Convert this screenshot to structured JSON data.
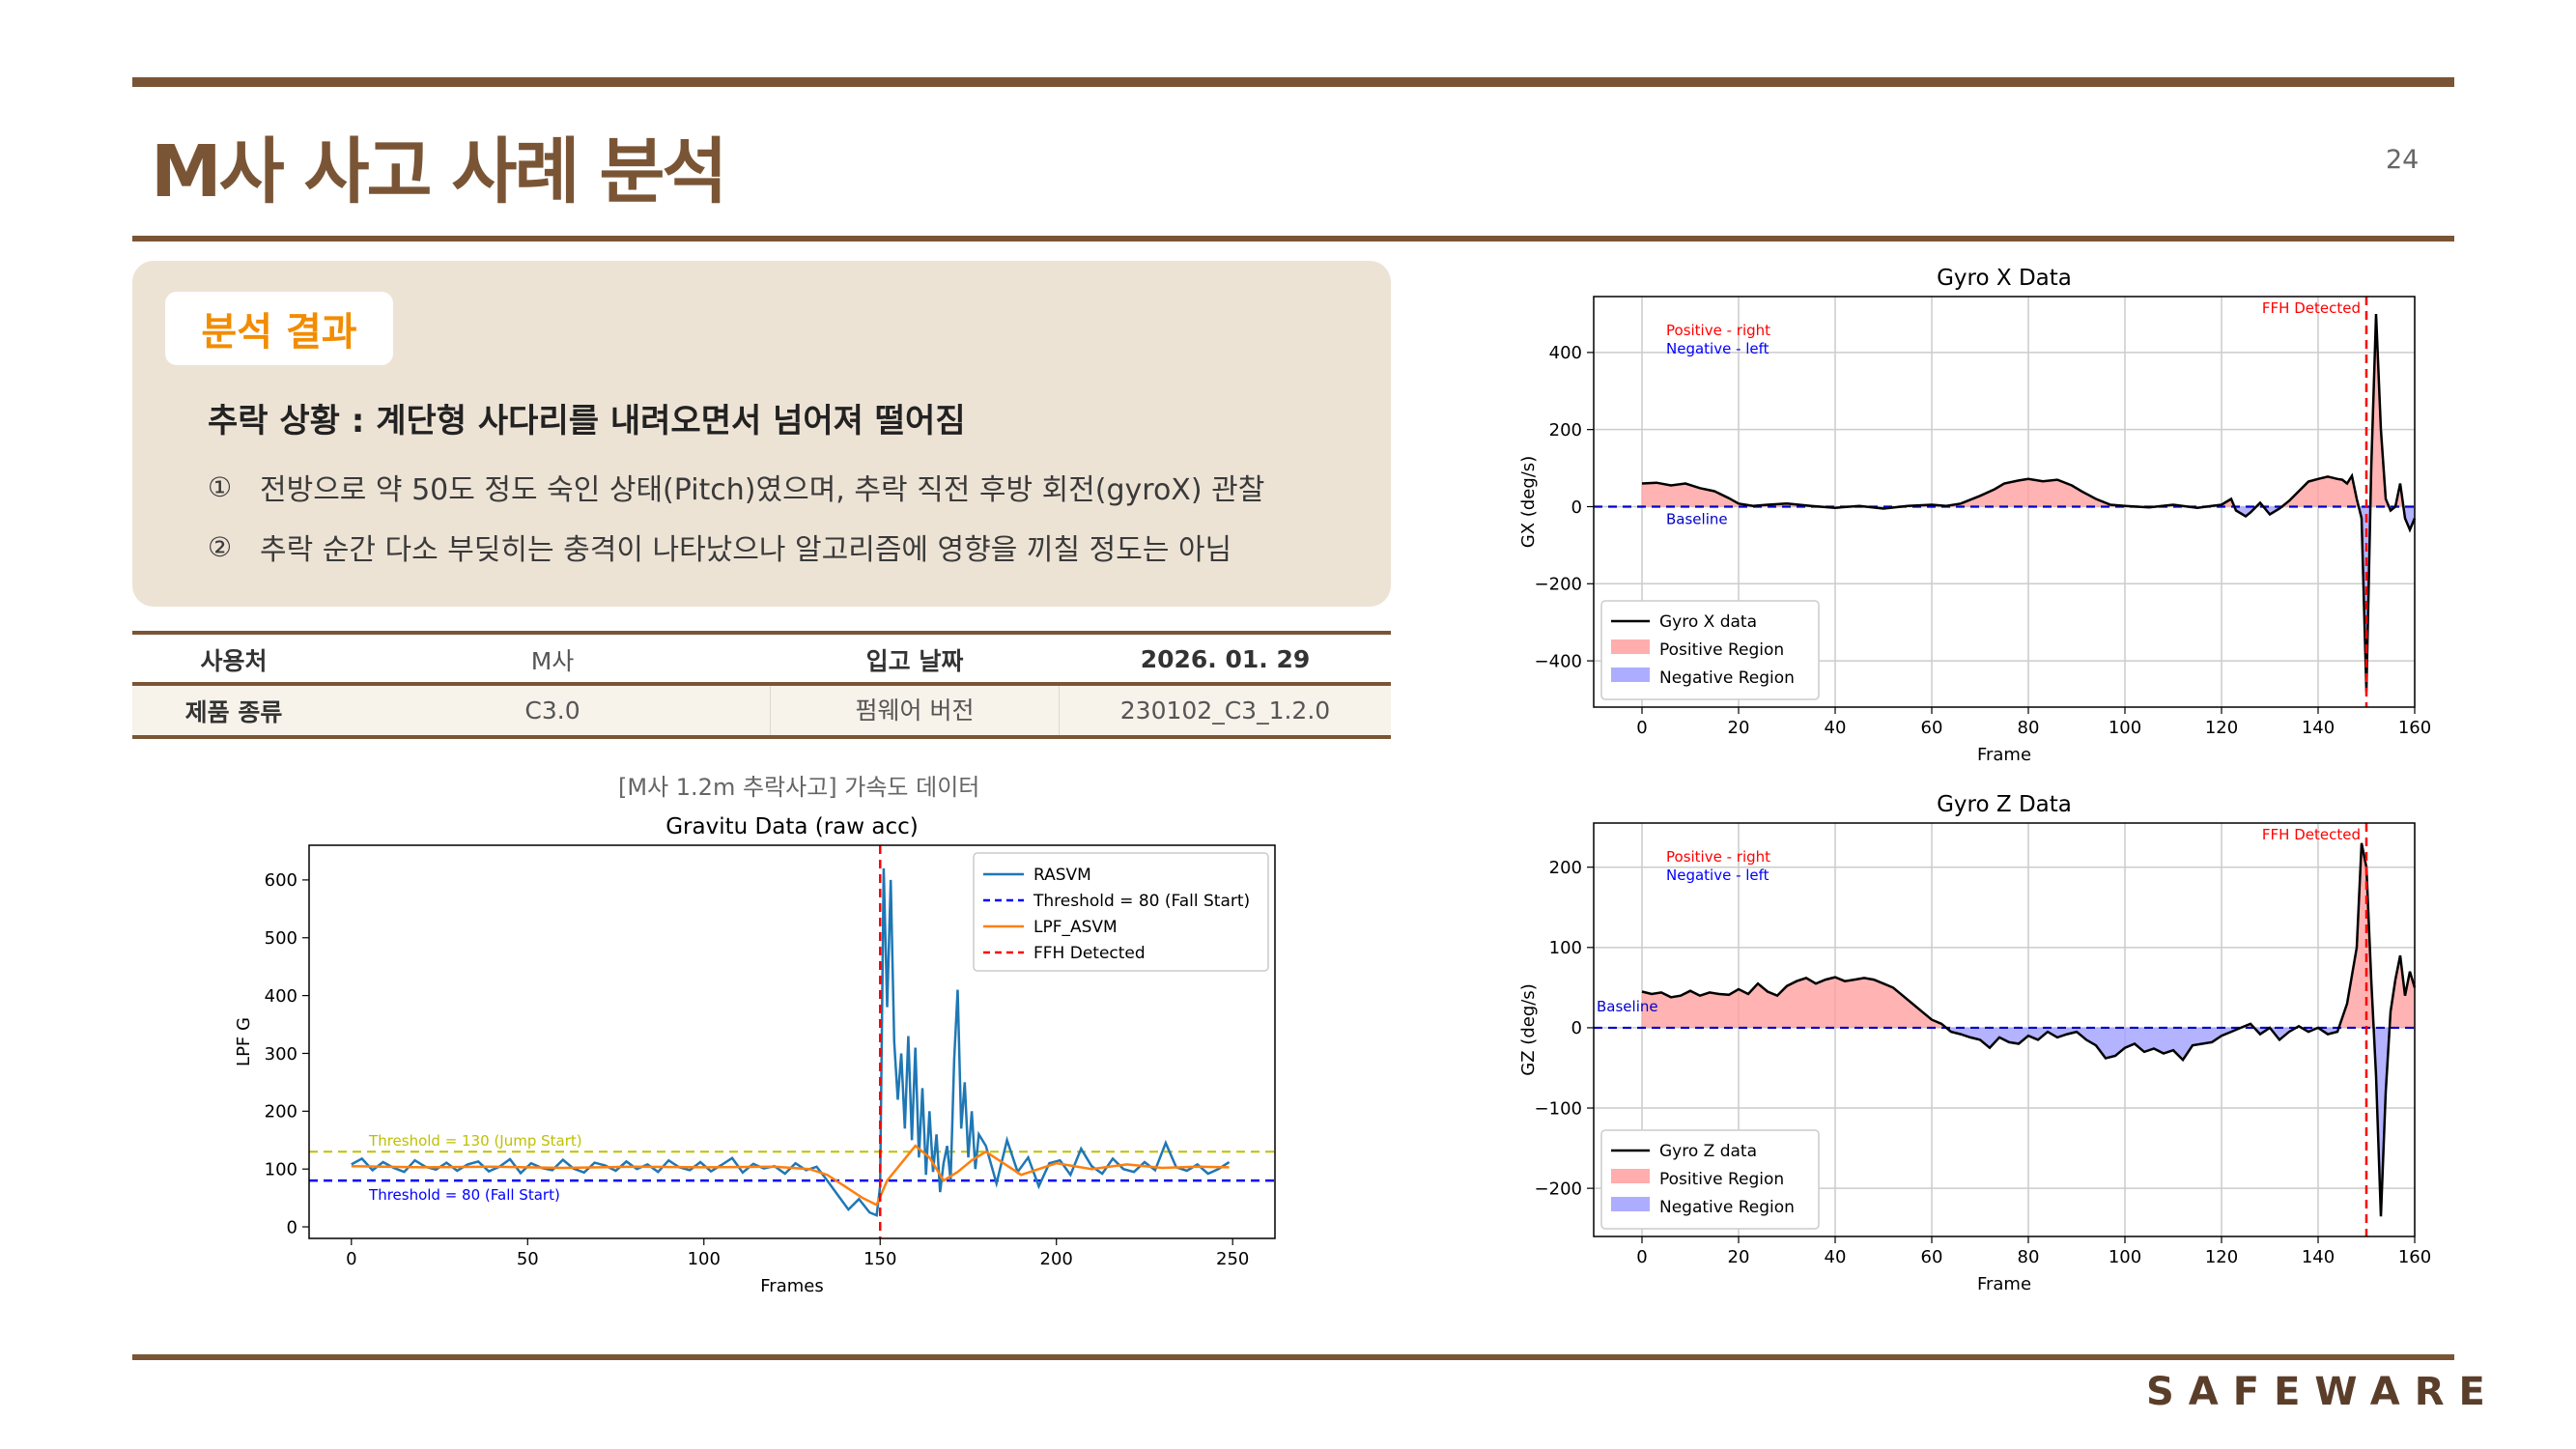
{
  "header": {
    "title": "M사 사고 사례 분석",
    "page_number": "24"
  },
  "result": {
    "tag": "분석 결과",
    "headline": "추락 상황 : 계단형 사다리를 내려오면서 넘어져 떨어짐",
    "items": [
      {
        "num": "①",
        "text": "전방으로 약 50도 정도 숙인 상태(Pitch)였으며, 추락 직전 후방 회전(gyroX) 관찰"
      },
      {
        "num": "②",
        "text": "추락 순간 다소 부딪히는 충격이 나타났으나 알고리즘에 영향을 끼칠 정도는 아님"
      }
    ]
  },
  "info_table": {
    "row1": [
      "사용처",
      "M사",
      "입고 날짜",
      "2026. 01. 29"
    ],
    "row2": [
      "제품 종류",
      "C3.0",
      "펌웨어 버전",
      "230102_C3_1.2.0"
    ]
  },
  "chart_caption": "[M사 1.2m 추락사고] 가속도 데이터",
  "brand": "SAFEWARE",
  "chart_data": [
    {
      "type": "line",
      "title": "Gravitu Data (raw acc)",
      "xlabel": "Frames",
      "ylabel": "LPF G",
      "xlim": [
        -12,
        262
      ],
      "ylim": [
        -20,
        660
      ],
      "xticks": [
        0,
        50,
        100,
        150,
        200,
        250
      ],
      "yticks": [
        0,
        100,
        200,
        300,
        400,
        500,
        600
      ],
      "grid": false,
      "legend_position": "upper right",
      "colors": {
        "rasvm": "#1f77b4",
        "lpf": "#ff7f0e",
        "fall": "#0000ff",
        "jump": "#bfbf00",
        "ffh": "#ff0000"
      },
      "series": [
        {
          "name": "RASVM",
          "x": [
            0,
            3,
            6,
            9,
            12,
            15,
            18,
            21,
            24,
            27,
            30,
            33,
            36,
            39,
            42,
            45,
            48,
            51,
            54,
            57,
            60,
            63,
            66,
            69,
            72,
            75,
            78,
            81,
            84,
            87,
            90,
            93,
            96,
            99,
            102,
            105,
            108,
            111,
            114,
            117,
            120,
            123,
            126,
            129,
            132,
            135,
            138,
            141,
            144,
            147,
            149,
            150,
            151,
            152,
            153,
            154,
            155,
            156,
            157,
            158,
            159,
            160,
            161,
            162,
            163,
            164,
            165,
            166,
            167,
            168,
            169,
            170,
            171,
            172,
            173,
            174,
            175,
            176,
            177,
            178,
            180,
            183,
            186,
            189,
            192,
            195,
            198,
            201,
            204,
            207,
            210,
            213,
            216,
            219,
            222,
            225,
            228,
            231,
            234,
            237,
            240,
            243,
            246,
            249
          ],
          "values": [
            108,
            118,
            98,
            112,
            102,
            95,
            115,
            104,
            99,
            111,
            97,
            108,
            113,
            96,
            104,
            117,
            93,
            110,
            102,
            98,
            116,
            101,
            94,
            111,
            106,
            97,
            113,
            100,
            108,
            95,
            115,
            103,
            98,
            112,
            96,
            107,
            119,
            94,
            109,
            101,
            105,
            92,
            110,
            98,
            104,
            80,
            55,
            30,
            48,
            25,
            20,
            70,
            620,
            380,
            600,
            320,
            220,
            300,
            170,
            330,
            150,
            310,
            120,
            240,
            90,
            200,
            95,
            160,
            60,
            110,
            140,
            80,
            290,
            410,
            170,
            250,
            120,
            200,
            100,
            160,
            140,
            75,
            150,
            95,
            120,
            70,
            110,
            115,
            90,
            135,
            105,
            92,
            118,
            100,
            95,
            112,
            98,
            145,
            103,
            97,
            108,
            92,
            100,
            112
          ]
        },
        {
          "name": "LPF_ASVM",
          "x": [
            0,
            20,
            40,
            60,
            80,
            100,
            120,
            130,
            135,
            140,
            145,
            149,
            152,
            156,
            160,
            164,
            168,
            172,
            176,
            180,
            185,
            190,
            195,
            200,
            210,
            220,
            230,
            240,
            249
          ],
          "values": [
            105,
            103,
            104,
            102,
            104,
            103,
            104,
            100,
            90,
            70,
            50,
            38,
            80,
            110,
            140,
            120,
            80,
            95,
            115,
            130,
            110,
            90,
            100,
            110,
            100,
            108,
            102,
            104,
            103
          ]
        }
      ],
      "threshold_lines": [
        {
          "name": "Threshold = 80 (Fall Start)",
          "value": 80,
          "annotation": "Threshold = 80 (Fall Start)"
        },
        {
          "name": "Threshold = 130 (Jump Start)",
          "value": 130,
          "annotation": "Threshold = 130 (Jump Start)"
        }
      ],
      "vertical_lines": [
        {
          "name": "FFH Detected",
          "x": 150
        }
      ],
      "legend": [
        "RASVM",
        "Threshold = 80 (Fall Start)",
        "LPF_ASVM",
        "FFH Detected"
      ]
    },
    {
      "type": "area",
      "title": "Gyro X Data",
      "xlabel": "Frame",
      "ylabel": "GX (deg/s)",
      "xlim": [
        -10,
        160
      ],
      "ylim": [
        -520,
        545
      ],
      "xticks": [
        0,
        20,
        40,
        60,
        80,
        100,
        120,
        140,
        160
      ],
      "yticks": [
        -400,
        -200,
        0,
        200,
        400
      ],
      "ytick_labels": [
        "−400",
        "−200",
        "0",
        "200",
        "400"
      ],
      "grid": true,
      "legend_position": "lower left",
      "baseline": 0,
      "baseline_label": "Baseline",
      "annotations": [
        "Positive - right",
        "Negative - left"
      ],
      "vertical_line": {
        "label": "FFH Detected",
        "x": 150
      },
      "colors": {
        "line": "#000000",
        "positive": "#ff9999",
        "negative": "#9999ff",
        "baseline": "#0000cc",
        "ffh": "#ff0000",
        "positive_text": "#ff0000",
        "negative_text": "#0000ff"
      },
      "series": [
        {
          "name": "Gyro X data",
          "x": [
            0,
            3,
            6,
            9,
            12,
            15,
            18,
            20,
            23,
            26,
            30,
            35,
            40,
            45,
            50,
            55,
            60,
            63,
            66,
            70,
            73,
            75,
            78,
            80,
            83,
            86,
            89,
            91,
            94,
            97,
            100,
            105,
            110,
            115,
            118,
            120,
            122,
            123,
            125,
            126,
            128,
            130,
            132,
            134,
            136,
            138,
            140,
            142,
            144,
            145,
            146,
            147,
            148,
            149,
            150,
            151,
            152,
            153,
            154,
            155,
            156,
            157,
            158,
            159,
            160
          ],
          "values": [
            60,
            62,
            55,
            60,
            48,
            40,
            22,
            8,
            2,
            5,
            8,
            2,
            -3,
            2,
            -5,
            2,
            5,
            2,
            8,
            28,
            45,
            60,
            68,
            72,
            66,
            70,
            55,
            40,
            20,
            5,
            2,
            -2,
            5,
            -3,
            2,
            5,
            20,
            -10,
            -25,
            -15,
            10,
            -20,
            -5,
            15,
            40,
            65,
            72,
            78,
            72,
            70,
            60,
            80,
            20,
            -30,
            -480,
            100,
            500,
            200,
            20,
            -10,
            0,
            60,
            -30,
            -60,
            -30
          ]
        }
      ],
      "legend": [
        "Gyro X data",
        "Positive Region",
        "Negative Region"
      ]
    },
    {
      "type": "area",
      "title": "Gyro Z Data",
      "xlabel": "Frame",
      "ylabel": "GZ (deg/s)",
      "xlim": [
        -10,
        160
      ],
      "ylim": [
        -260,
        255
      ],
      "xticks": [
        0,
        20,
        40,
        60,
        80,
        100,
        120,
        140,
        160
      ],
      "yticks": [
        -200,
        -100,
        0,
        100,
        200
      ],
      "ytick_labels": [
        "−200",
        "−100",
        "0",
        "100",
        "200"
      ],
      "grid": true,
      "legend_position": "lower left",
      "baseline": 0,
      "baseline_label": "Baseline",
      "annotations": [
        "Positive - right",
        "Negative - left"
      ],
      "vertical_line": {
        "label": "FFH Detected",
        "x": 150
      },
      "colors": {
        "line": "#000000",
        "positive": "#ff9999",
        "negative": "#9999ff",
        "baseline": "#0000cc",
        "ffh": "#ff0000",
        "positive_text": "#ff0000",
        "negative_text": "#0000ff"
      },
      "series": [
        {
          "name": "Gyro Z data",
          "x": [
            0,
            2,
            4,
            6,
            8,
            10,
            12,
            14,
            16,
            18,
            20,
            22,
            24,
            26,
            28,
            30,
            32,
            34,
            36,
            38,
            40,
            42,
            44,
            46,
            48,
            50,
            52,
            54,
            56,
            58,
            60,
            62,
            64,
            66,
            68,
            70,
            72,
            74,
            76,
            78,
            80,
            82,
            84,
            86,
            88,
            90,
            92,
            94,
            96,
            98,
            100,
            102,
            104,
            106,
            108,
            110,
            112,
            114,
            116,
            118,
            120,
            122,
            124,
            126,
            128,
            130,
            132,
            134,
            136,
            138,
            140,
            142,
            144,
            146,
            148,
            149,
            150,
            151,
            152,
            153,
            154,
            155,
            156,
            157,
            158,
            159,
            160
          ],
          "values": [
            45,
            42,
            44,
            38,
            40,
            46,
            40,
            44,
            42,
            41,
            48,
            42,
            55,
            45,
            40,
            52,
            58,
            62,
            55,
            60,
            63,
            58,
            60,
            62,
            60,
            55,
            50,
            40,
            30,
            20,
            10,
            5,
            -5,
            -8,
            -12,
            -15,
            -25,
            -12,
            -18,
            -20,
            -10,
            -15,
            -5,
            -12,
            -8,
            -5,
            -15,
            -22,
            -38,
            -35,
            -25,
            -20,
            -30,
            -26,
            -32,
            -28,
            -40,
            -22,
            -20,
            -18,
            -10,
            -5,
            0,
            5,
            -8,
            0,
            -15,
            -5,
            2,
            -5,
            0,
            -8,
            -5,
            30,
            100,
            230,
            200,
            60,
            -60,
            -235,
            -80,
            20,
            60,
            90,
            40,
            70,
            50
          ]
        }
      ],
      "legend": [
        "Gyro Z data",
        "Positive Region",
        "Negative Region"
      ]
    }
  ]
}
